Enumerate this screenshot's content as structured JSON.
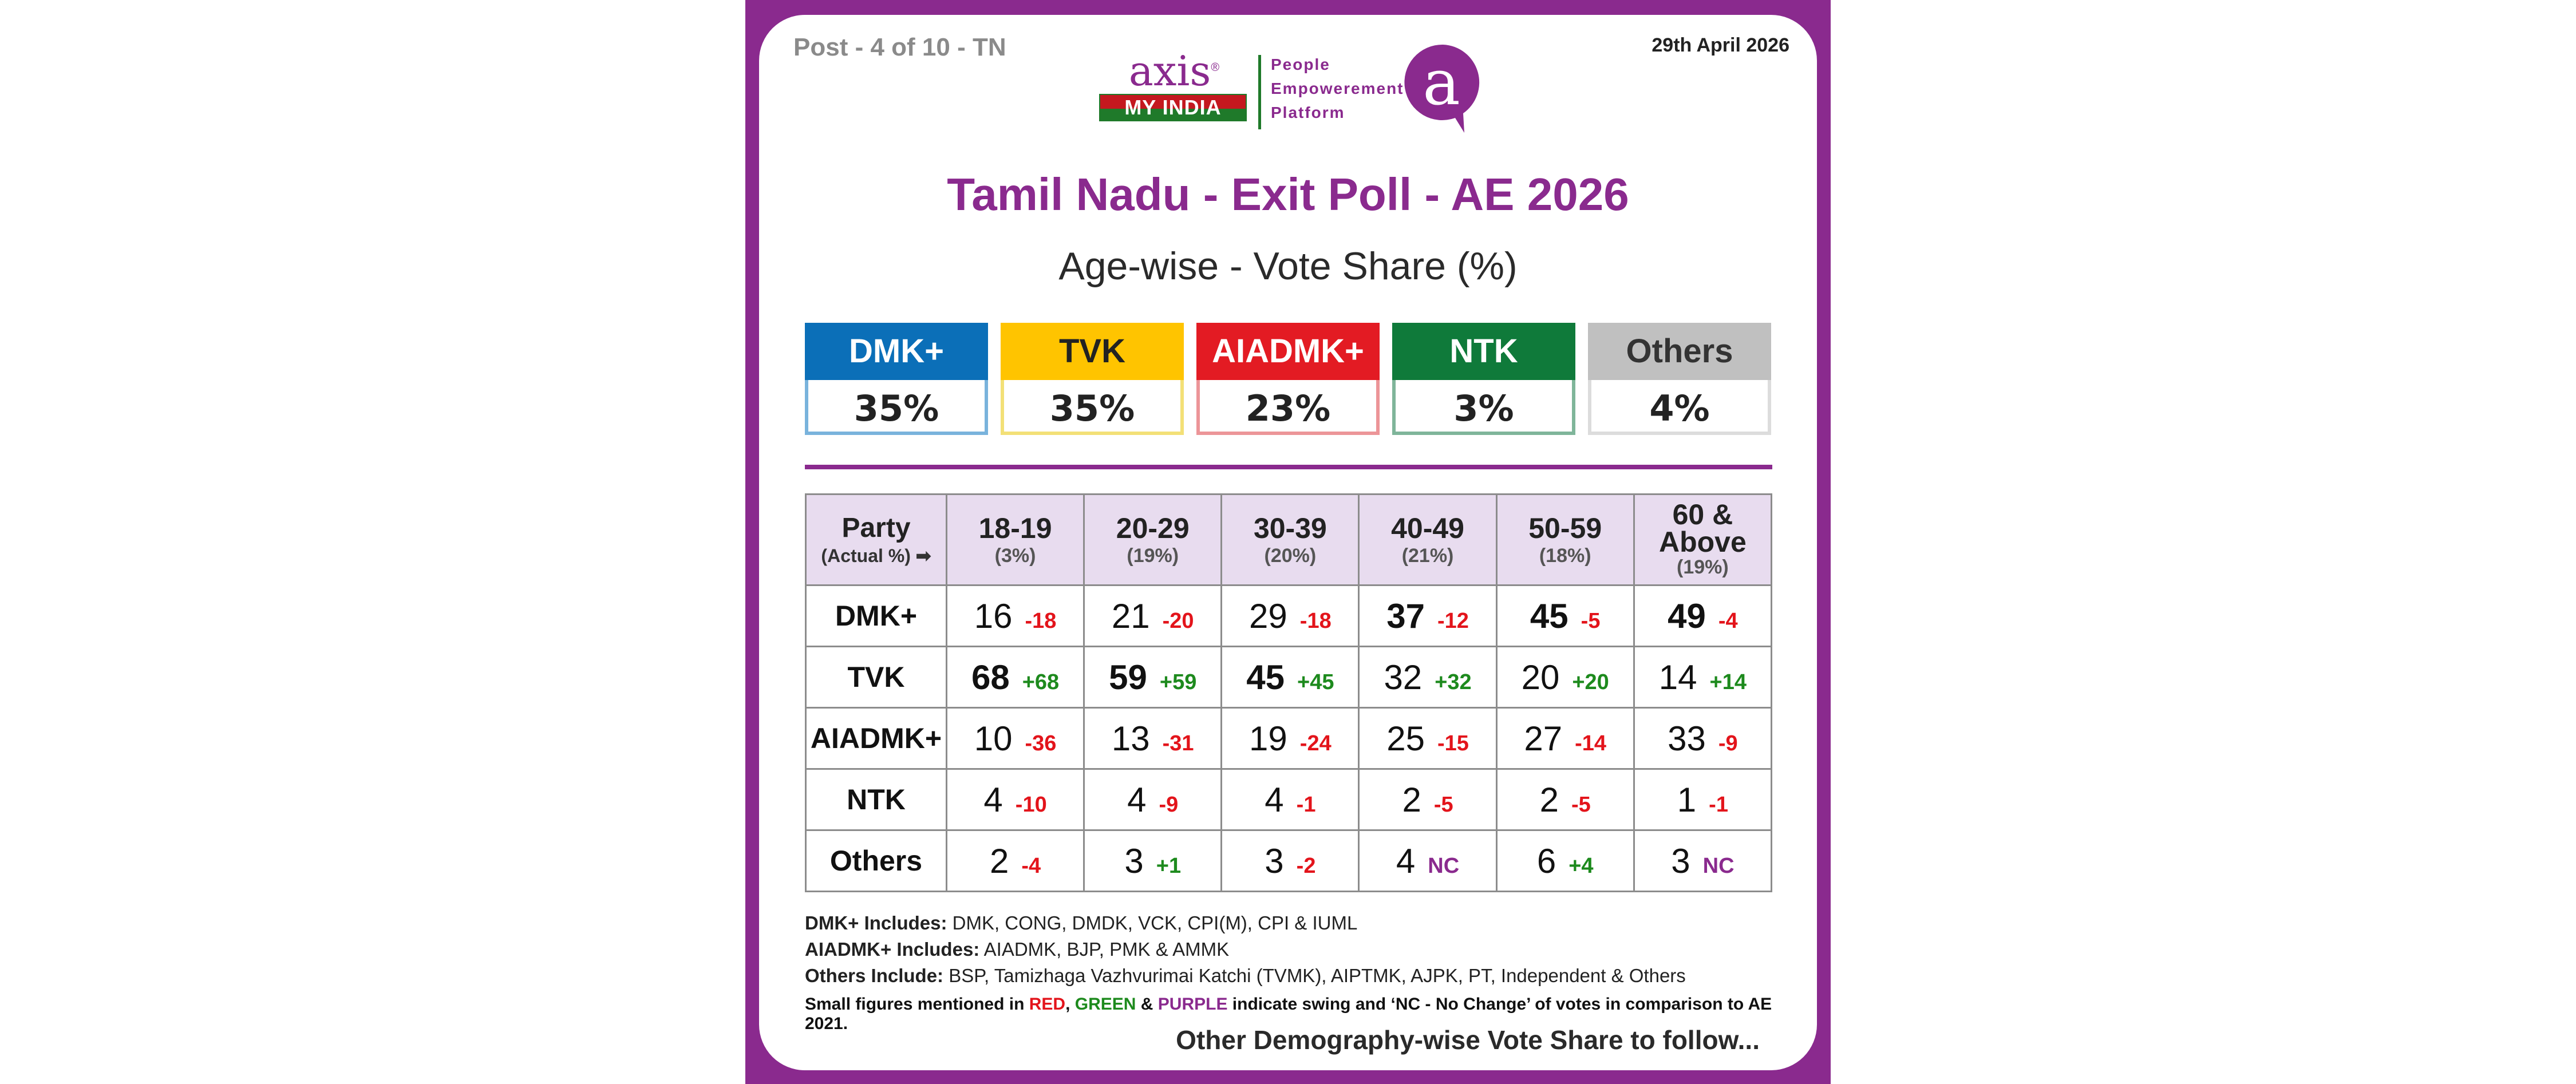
{
  "header": {
    "post_label": "Post - 4 of 10 - TN",
    "date": "29th April 2026",
    "logo": {
      "axis_word": "axis",
      "registered": "®",
      "my_india": "MY INDIA",
      "tagline": [
        "People",
        "Empowerement",
        "Platform"
      ],
      "a_mark": "a"
    }
  },
  "title": "Tamil Nadu - Exit Poll - AE 2026",
  "subtitle": "Age-wise - Vote Share (%)",
  "colors": {
    "brand": "#8a2a8e",
    "dmk": "#0b6fb8",
    "tvk": "#ffc400",
    "aiadmk": "#e31b23",
    "ntk": "#0f7a3a",
    "others": "#c0c0c0",
    "negative": "#e3141b",
    "positive": "#1d8a1d",
    "no_change": "#8a2a8e"
  },
  "summary": [
    {
      "party": "DMK+",
      "value": "35%",
      "color": "#0b6fb8",
      "border": "#79b3dc",
      "text_color": "#ffffff"
    },
    {
      "party": "TVK",
      "value": "35%",
      "color": "#ffc400",
      "border": "#f3e077",
      "text_color": "#222222"
    },
    {
      "party": "AIADMK+",
      "value": "23%",
      "color": "#e31b23",
      "border": "#ec9598",
      "text_color": "#ffffff"
    },
    {
      "party": "NTK",
      "value": "3%",
      "color": "#0f7a3a",
      "border": "#7fb59a",
      "text_color": "#ffffff"
    },
    {
      "party": "Others",
      "value": "4%",
      "color": "#c0c0c0",
      "border": "#dcdcdc",
      "text_color": "#333333"
    }
  ],
  "table": {
    "party_header": "Party",
    "party_subheader": "(Actual %)",
    "arrow_icon": "➡",
    "columns": [
      {
        "label": "18-19",
        "share": "(3%)"
      },
      {
        "label": "20-29",
        "share": "(19%)"
      },
      {
        "label": "30-39",
        "share": "(20%)"
      },
      {
        "label": "40-49",
        "share": "(21%)"
      },
      {
        "label": "50-59",
        "share": "(18%)"
      },
      {
        "label": "60 & Above",
        "share": "(19%)"
      }
    ],
    "rows": [
      {
        "party": "DMK+",
        "cells": [
          {
            "value": "16",
            "swing": "-18",
            "type": "neg",
            "bold": false
          },
          {
            "value": "21",
            "swing": "-20",
            "type": "neg",
            "bold": false
          },
          {
            "value": "29",
            "swing": "-18",
            "type": "neg",
            "bold": false
          },
          {
            "value": "37",
            "swing": "-12",
            "type": "neg",
            "bold": true
          },
          {
            "value": "45",
            "swing": "-5",
            "type": "neg",
            "bold": true
          },
          {
            "value": "49",
            "swing": "-4",
            "type": "neg",
            "bold": true
          }
        ]
      },
      {
        "party": "TVK",
        "cells": [
          {
            "value": "68",
            "swing": "+68",
            "type": "pos",
            "bold": true
          },
          {
            "value": "59",
            "swing": "+59",
            "type": "pos",
            "bold": true
          },
          {
            "value": "45",
            "swing": "+45",
            "type": "pos",
            "bold": true
          },
          {
            "value": "32",
            "swing": "+32",
            "type": "pos",
            "bold": false
          },
          {
            "value": "20",
            "swing": "+20",
            "type": "pos",
            "bold": false
          },
          {
            "value": "14",
            "swing": "+14",
            "type": "pos",
            "bold": false
          }
        ]
      },
      {
        "party": "AIADMK+",
        "cells": [
          {
            "value": "10",
            "swing": "-36",
            "type": "neg",
            "bold": false
          },
          {
            "value": "13",
            "swing": "-31",
            "type": "neg",
            "bold": false
          },
          {
            "value": "19",
            "swing": "-24",
            "type": "neg",
            "bold": false
          },
          {
            "value": "25",
            "swing": "-15",
            "type": "neg",
            "bold": false
          },
          {
            "value": "27",
            "swing": "-14",
            "type": "neg",
            "bold": false
          },
          {
            "value": "33",
            "swing": "-9",
            "type": "neg",
            "bold": false
          }
        ]
      },
      {
        "party": "NTK",
        "cells": [
          {
            "value": "4",
            "swing": "-10",
            "type": "neg",
            "bold": false
          },
          {
            "value": "4",
            "swing": "-9",
            "type": "neg",
            "bold": false
          },
          {
            "value": "4",
            "swing": "-1",
            "type": "neg",
            "bold": false
          },
          {
            "value": "2",
            "swing": "-5",
            "type": "neg",
            "bold": false
          },
          {
            "value": "2",
            "swing": "-5",
            "type": "neg",
            "bold": false
          },
          {
            "value": "1",
            "swing": "-1",
            "type": "neg",
            "bold": false
          }
        ]
      },
      {
        "party": "Others",
        "cells": [
          {
            "value": "2",
            "swing": "-4",
            "type": "neg",
            "bold": false
          },
          {
            "value": "3",
            "swing": "+1",
            "type": "pos",
            "bold": false
          },
          {
            "value": "3",
            "swing": "-2",
            "type": "neg",
            "bold": false
          },
          {
            "value": "4",
            "swing": "NC",
            "type": "nc",
            "bold": false
          },
          {
            "value": "6",
            "swing": "+4",
            "type": "pos",
            "bold": false
          },
          {
            "value": "3",
            "swing": "NC",
            "type": "nc",
            "bold": false
          }
        ]
      }
    ]
  },
  "notes": [
    {
      "label": "DMK+ Includes:",
      "text": " DMK, CONG, DMDK, VCK, CPI(M), CPI & IUML"
    },
    {
      "label": "AIADMK+ Includes:",
      "text": " AIADMK, BJP, PMK & AMMK"
    },
    {
      "label": "Others Include:",
      "text": " BSP, Tamizhaga Vazhvurimai Katchi (TVMK), AIPTMK, AJPK, PT, Independent & Others"
    }
  ],
  "legend_note": {
    "prefix": "Small figures mentioned in ",
    "red": "RED",
    "comma": ", ",
    "green": "GREEN",
    "amp": " & ",
    "purple": "PURPLE",
    "suffix": " indicate swing and ‘NC - No Change’ of votes in comparison to AE 2021."
  },
  "footer": "Other Demography-wise Vote Share to follow...",
  "chart_data": {
    "type": "table",
    "title": "Tamil Nadu - Exit Poll - AE 2026",
    "subtitle": "Age-wise - Vote Share (%)",
    "overall": {
      "DMK+": 35,
      "TVK": 35,
      "AIADMK+": 23,
      "NTK": 3,
      "Others": 4
    },
    "categories": [
      "18-19",
      "20-29",
      "30-39",
      "40-49",
      "50-59",
      "60 & Above"
    ],
    "category_share": [
      3,
      19,
      20,
      21,
      18,
      19
    ],
    "series": [
      {
        "name": "DMK+",
        "values": [
          16,
          21,
          29,
          37,
          45,
          49
        ],
        "swing": [
          -18,
          -20,
          -18,
          -12,
          -5,
          -4
        ]
      },
      {
        "name": "TVK",
        "values": [
          68,
          59,
          45,
          32,
          20,
          14
        ],
        "swing": [
          68,
          59,
          45,
          32,
          20,
          14
        ]
      },
      {
        "name": "AIADMK+",
        "values": [
          10,
          13,
          19,
          25,
          27,
          33
        ],
        "swing": [
          -36,
          -31,
          -24,
          -15,
          -14,
          -9
        ]
      },
      {
        "name": "NTK",
        "values": [
          4,
          4,
          4,
          2,
          2,
          1
        ],
        "swing": [
          -10,
          -9,
          -1,
          -5,
          -5,
          -1
        ]
      },
      {
        "name": "Others",
        "values": [
          2,
          3,
          3,
          4,
          6,
          3
        ],
        "swing": [
          -4,
          1,
          -2,
          "NC",
          4,
          "NC"
        ]
      }
    ]
  }
}
